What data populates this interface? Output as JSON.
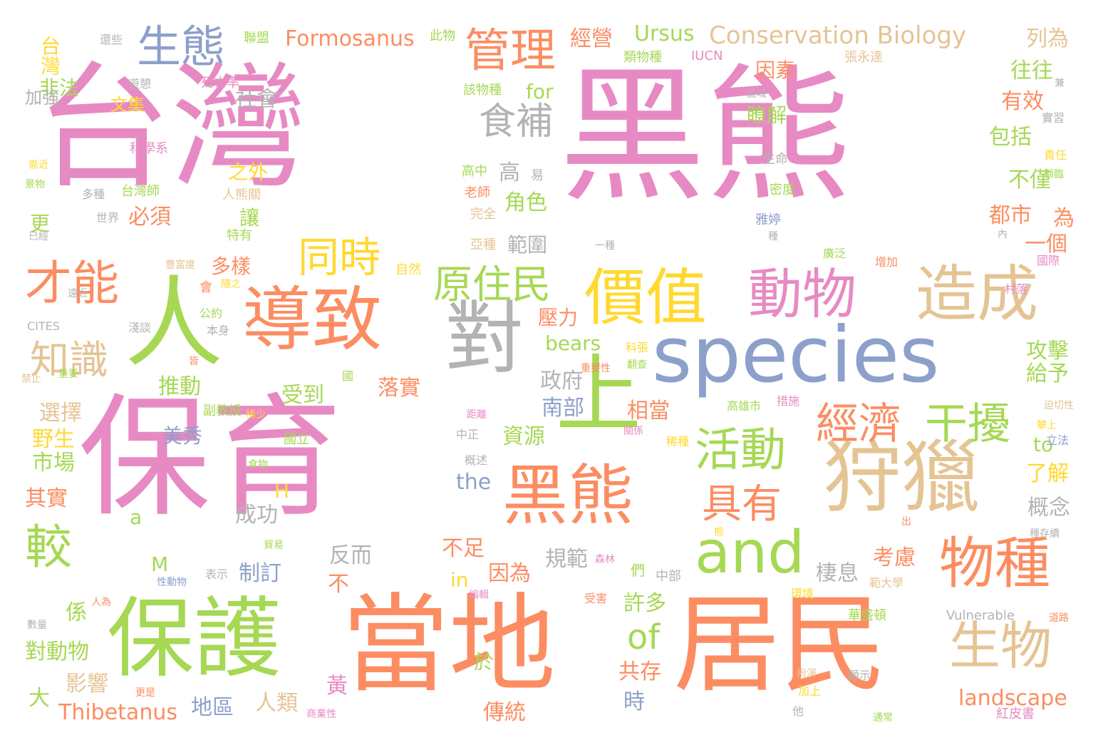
{
  "colors": {
    "pink": "#e78ac3",
    "orange": "#fc8d62",
    "green": "#66c2a5",
    "lime": "#a6d854",
    "blue": "#8da0cb",
    "tan": "#e5c494",
    "grey": "#b3b3b3",
    "yellow": "#ffd92f"
  },
  "words": [
    "黑熊",
    "台灣",
    "保育",
    "居民",
    "當地",
    "species",
    "保護",
    "狩獵",
    "黑熊",
    "導致",
    "對",
    "上",
    "價值",
    "人",
    "造成",
    "動物",
    "and",
    "物種",
    "生物",
    "經濟",
    "干擾",
    "活動",
    "具有",
    "才能",
    "較",
    "原住民",
    "同時",
    "知識",
    "生態",
    "管理",
    "食補",
    "of",
    "Conservation Biology",
    "Formosanus",
    "Ursus",
    "經營",
    "列為",
    "台灣",
    "非法",
    "加強",
    "文集",
    "因素",
    "瞭解",
    "往往",
    "有效",
    "包括",
    "不僅",
    "都市",
    "為",
    "一個",
    "角色",
    "高",
    "落實",
    "受到",
    "推動",
    "選擇",
    "野生",
    "市場",
    "其實",
    "係",
    "對動物",
    "大",
    "Thibetanus",
    "地區",
    "人類",
    "影響",
    "黃",
    "傳統",
    "時",
    "共存",
    "於",
    "許多",
    "相當",
    "南部",
    "政府",
    "bears",
    "the",
    "a",
    "H",
    "M",
    "in",
    "不",
    "反而",
    "成功",
    "制訂",
    "規範",
    "因為",
    "不足",
    "考慮",
    "棲息",
    "概念",
    "了解",
    "攻擊",
    "給予",
    "to",
    "landscape",
    "資源",
    "範圍",
    "壓力",
    "多樣",
    "讓",
    "必須",
    "美秀",
    "更",
    "社會",
    "for",
    "之外",
    "IUCN",
    "類物種",
    "張永達",
    "聯盟",
    "此物",
    "還些",
    "遊憩",
    "死亡率",
    "該物種",
    "科學系",
    "台灣師",
    "世界",
    "多種",
    "高中",
    "老師",
    "完全",
    "亞種",
    "易",
    "生命",
    "密度",
    "雅婷",
    "種",
    "一種",
    "實習",
    "責任",
    "瀕臨",
    "區域",
    "兼",
    "內",
    "增加",
    "國際",
    "廣泛",
    "村落",
    "公約",
    "本身",
    "淺談",
    "CITES",
    "會",
    "隨之",
    "遠近",
    "豐富度",
    "自然",
    "人熊關",
    "特有",
    "靠近",
    "景物",
    "已經",
    "皆",
    "禁止",
    "重要",
    "稀少",
    "國立",
    "距離",
    "中正",
    "食物",
    "概述",
    "國",
    "副教授",
    "重要性",
    "科張",
    "翻查",
    "高雄市",
    "措施",
    "迫切性",
    "立法",
    "攀上",
    "稀種",
    "關係",
    "出",
    "種存續",
    "森林",
    "熊",
    "中部",
    "們",
    "貿易",
    "表示",
    "性動物",
    "人為",
    "受害",
    "編輯",
    "範大學",
    "環境",
    "Vulnerable",
    "華盛頓",
    "數量",
    "道路",
    "扮演",
    "顯示",
    "加上",
    "他",
    "更是",
    "商業性",
    "通常",
    "紅皮書"
  ]
}
